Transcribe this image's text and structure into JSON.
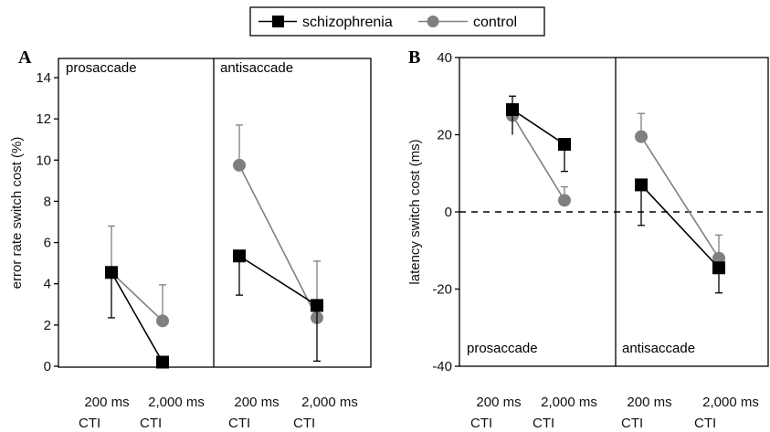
{
  "legend": {
    "items": [
      {
        "label": "schizophrenia",
        "color": "#000000",
        "marker": "square"
      },
      {
        "label": "control",
        "color": "#808080",
        "marker": "circle"
      }
    ]
  },
  "chart_data": [
    {
      "type": "line",
      "panel_label": "A",
      "ylabel": "error rate switch cost (%)",
      "ylim": [
        0,
        14
      ],
      "yticks": [
        0,
        2,
        4,
        6,
        8,
        10,
        12,
        14
      ],
      "zero_line": false,
      "subpanels": [
        {
          "label": "prosaccade",
          "label_position": "top-left"
        },
        {
          "label": "antisaccade",
          "label_position": "top-left"
        }
      ],
      "categories": [
        {
          "line1": "200 ms",
          "line2": "CTI"
        },
        {
          "line1": "2,000 ms",
          "line2": "CTI"
        },
        {
          "line1": "200 ms",
          "line2": "CTI"
        },
        {
          "line1": "2,000 ms",
          "line2": "CTI"
        }
      ],
      "series": [
        {
          "name": "schizophrenia",
          "color": "#000000",
          "marker": "square",
          "values": [
            4.55,
            0.2,
            5.35,
            2.95
          ],
          "err_low": [
            2.35,
            0.0,
            3.45,
            0.25
          ],
          "err_high": [
            4.55,
            0.2,
            5.35,
            2.95
          ]
        },
        {
          "name": "control",
          "color": "#808080",
          "marker": "circle",
          "values": [
            4.55,
            2.2,
            9.75,
            2.35
          ],
          "err_low": [
            4.55,
            2.2,
            9.75,
            2.35
          ],
          "err_high": [
            6.8,
            3.95,
            11.7,
            5.1
          ]
        }
      ]
    },
    {
      "type": "line",
      "panel_label": "B",
      "ylabel": "latency switch cost (ms)",
      "ylim": [
        -40,
        40
      ],
      "yticks": [
        -40,
        -20,
        0,
        20,
        40
      ],
      "zero_line": true,
      "subpanels": [
        {
          "label": "prosaccade",
          "label_position": "bottom-left"
        },
        {
          "label": "antisaccade",
          "label_position": "bottom-left"
        }
      ],
      "categories": [
        {
          "line1": "200 ms",
          "line2": "CTI"
        },
        {
          "line1": "2,000 ms",
          "line2": "CTI"
        },
        {
          "line1": "200 ms",
          "line2": "CTI"
        },
        {
          "line1": "2,000 ms",
          "line2": "CTI"
        }
      ],
      "series": [
        {
          "name": "schizophrenia",
          "color": "#000000",
          "marker": "square",
          "values": [
            26.5,
            17.5,
            7.0,
            -14.5
          ],
          "err_low": [
            20.0,
            10.5,
            -3.5,
            -21.0
          ],
          "err_high": [
            30.0,
            17.5,
            7.0,
            -14.5
          ]
        },
        {
          "name": "control",
          "color": "#808080",
          "marker": "circle",
          "values": [
            25.0,
            3.0,
            19.5,
            -12.0
          ],
          "err_low": [
            25.0,
            3.0,
            19.5,
            -12.0
          ],
          "err_high": [
            25.0,
            6.5,
            25.5,
            -6.0
          ]
        }
      ]
    }
  ]
}
